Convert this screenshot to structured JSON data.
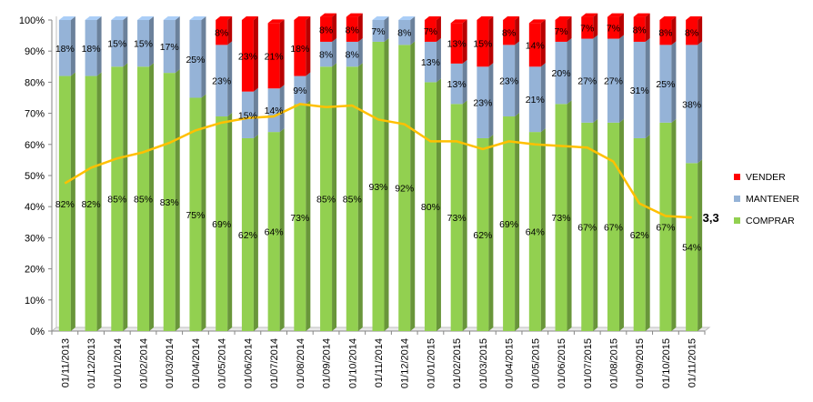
{
  "chart_data": {
    "type": "bar",
    "stacked": true,
    "percent_stacked": true,
    "categories": [
      "01/11/2013",
      "01/12/2013",
      "01/01/2014",
      "01/02/2014",
      "01/03/2014",
      "01/04/2014",
      "01/05/2014",
      "01/06/2014",
      "01/07/2014",
      "01/08/2014",
      "01/09/2014",
      "01/10/2014",
      "01/11/2014",
      "01/12/2014",
      "01/01/2015",
      "01/02/2015",
      "01/03/2015",
      "01/04/2015",
      "01/05/2015",
      "01/06/2015",
      "01/07/2015",
      "01/08/2015",
      "01/09/2015",
      "01/10/2015",
      "01/11/2015"
    ],
    "series": [
      {
        "name": "COMPRAR",
        "color": "#92d050",
        "values": [
          82,
          82,
          85,
          85,
          83,
          75,
          69,
          62,
          64,
          73,
          85,
          85,
          93,
          92,
          80,
          73,
          62,
          69,
          64,
          73,
          67,
          67,
          62,
          67,
          54
        ],
        "labels": [
          "82%",
          "82%",
          "85%",
          "85%",
          "83%",
          "75%",
          "69%",
          "62%",
          "64%",
          "73%",
          "85%",
          "85%",
          "93%",
          "92%",
          "80%",
          "73%",
          "62%",
          "69%",
          "64%",
          "73%",
          "67%",
          "67%",
          "62%",
          "67%",
          "54%"
        ]
      },
      {
        "name": "MANTENER",
        "color": "#95b3d7",
        "values": [
          18,
          18,
          15,
          15,
          17,
          25,
          23,
          15,
          14,
          9,
          8,
          8,
          7,
          8,
          13,
          13,
          23,
          23,
          21,
          20,
          27,
          27,
          31,
          25,
          38
        ],
        "labels": [
          "18%",
          "18%",
          "15%",
          "15%",
          "17%",
          "25%",
          "23%",
          "15%",
          "14%",
          "9%",
          "8%",
          "8%",
          "7%",
          "8%",
          "13%",
          "13%",
          "23%",
          "23%",
          "21%",
          "20%",
          "27%",
          "27%",
          "31%",
          "25%",
          "38%"
        ]
      },
      {
        "name": "VENDER",
        "color": "#ff0000",
        "values": [
          0,
          0,
          0,
          0,
          0,
          0,
          8,
          23,
          21,
          18,
          8,
          8,
          0,
          0,
          7,
          13,
          15,
          8,
          14,
          7,
          7,
          7,
          8,
          8,
          8
        ],
        "labels": [
          "",
          "",
          "",
          "",
          "",
          "",
          "8%",
          "23%",
          "21%",
          "18%",
          "8%",
          "8%",
          "",
          "",
          "7%",
          "13%",
          "15%",
          "8%",
          "14%",
          "7%",
          "7%",
          "7%",
          "8%",
          "8%",
          "8%"
        ]
      }
    ],
    "line": {
      "color": "#ffc000",
      "values": [
        47.5,
        52.5,
        55.5,
        57.5,
        60.5,
        64.5,
        67,
        68.5,
        69,
        73,
        72,
        72.5,
        68,
        66.5,
        61,
        61,
        58.5,
        61,
        60,
        59.5,
        59,
        54.5,
        41,
        37,
        36.5
      ]
    },
    "end_label": "3,3",
    "yticks": [
      "0%",
      "10%",
      "20%",
      "30%",
      "40%",
      "50%",
      "60%",
      "70%",
      "80%",
      "90%",
      "100%"
    ],
    "ylim": [
      0,
      100
    ],
    "legend": {
      "position": "right",
      "entries": [
        "VENDER",
        "MANTENER",
        "COMPRAR"
      ]
    },
    "grid": false
  }
}
